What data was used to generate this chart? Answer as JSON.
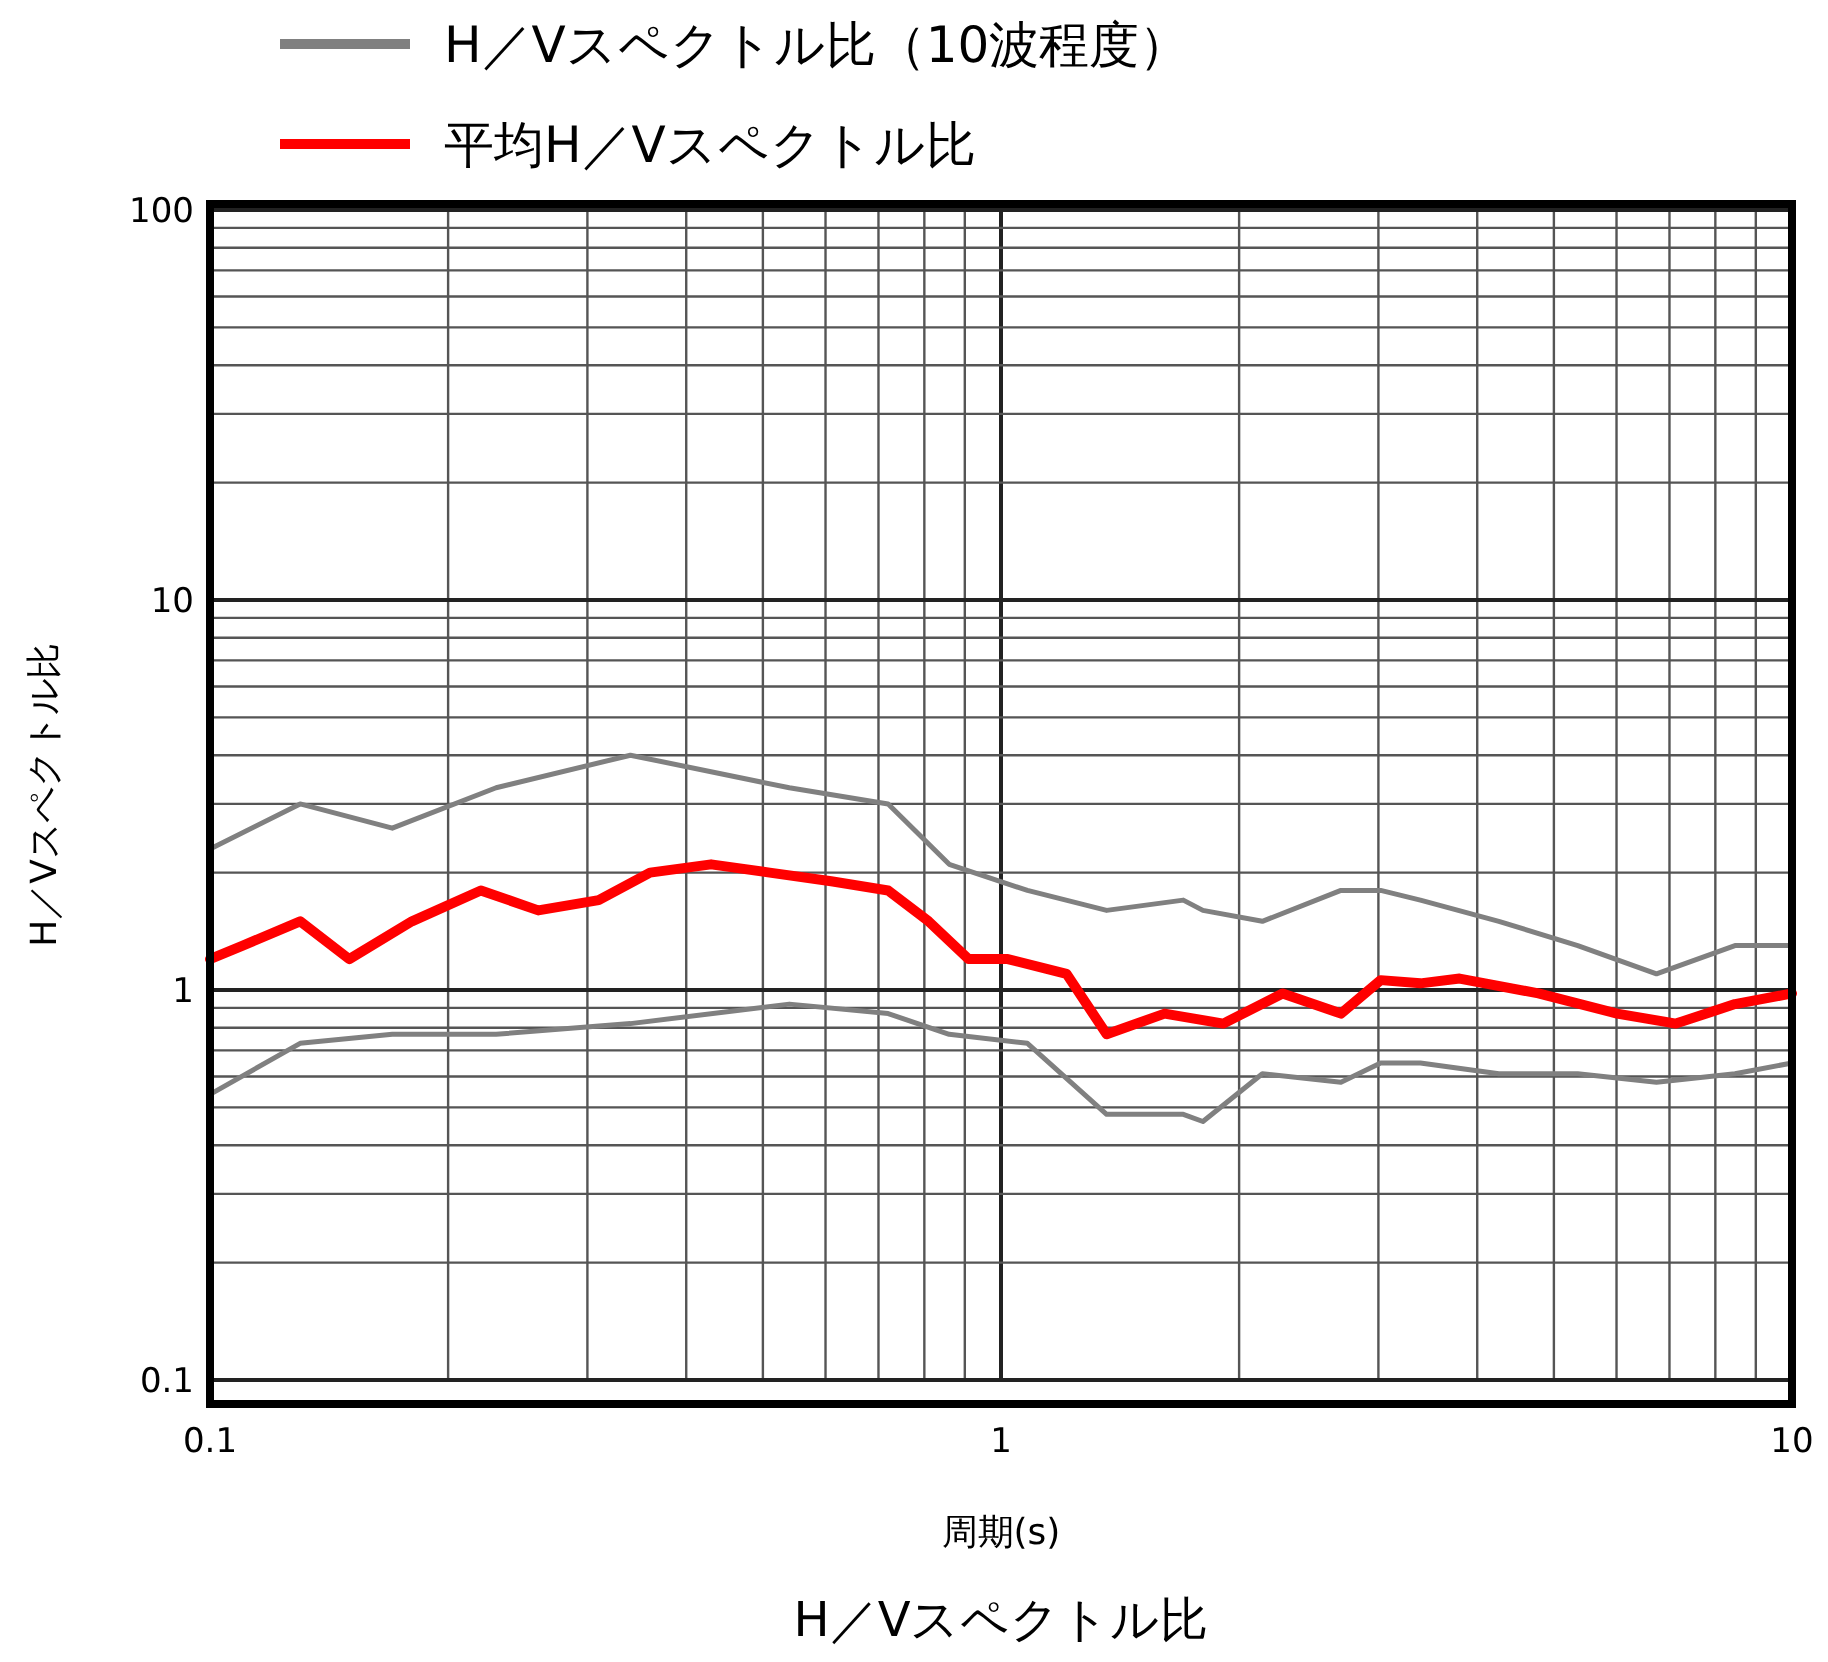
{
  "chart_data": {
    "type": "line",
    "title": "H／Vスペクトル比",
    "xlabel": "周期(s)",
    "ylabel": "H／Vスペクトル比",
    "log": "xy",
    "xlim": [
      0.1,
      10
    ],
    "ylim": [
      0.1,
      100
    ],
    "xticks": [
      0.1,
      1,
      10
    ],
    "yticks": [
      0.1,
      1,
      10,
      100
    ],
    "grid": true,
    "legend": "top",
    "series": [
      {
        "name": "H／Vスペクトル比（10波程度）",
        "color": "#808080",
        "x": [
          0.1,
          0.13,
          0.17,
          0.23,
          0.34,
          0.54,
          0.72,
          0.86,
          1.08,
          1.36,
          1.7,
          1.8,
          2.14,
          2.69,
          3.02,
          3.39,
          4.26,
          5.36,
          6.74,
          8.47,
          10
        ],
        "values": [
          2.3,
          3.0,
          2.6,
          3.3,
          4.0,
          3.3,
          3.0,
          2.1,
          1.8,
          1.6,
          1.7,
          1.6,
          1.5,
          1.8,
          1.8,
          1.7,
          1.5,
          1.3,
          1.1,
          1.3,
          1.3
        ]
      },
      {
        "color": "#808080",
        "x": [
          0.1,
          0.13,
          0.17,
          0.23,
          0.34,
          0.54,
          0.72,
          0.86,
          1.08,
          1.36,
          1.7,
          1.8,
          2.14,
          2.69,
          3.02,
          3.39,
          4.26,
          5.36,
          6.74,
          8.47,
          10
        ],
        "values": [
          0.54,
          0.73,
          0.77,
          0.77,
          0.82,
          0.92,
          0.87,
          0.77,
          0.73,
          0.48,
          0.48,
          0.46,
          0.61,
          0.58,
          0.65,
          0.65,
          0.61,
          0.61,
          0.58,
          0.61,
          0.65
        ]
      },
      {
        "name": "平均H／Vスペクトル比",
        "color": "#ff0000",
        "type": "line",
        "x": [
          0.1,
          0.11,
          0.13,
          0.15,
          0.18,
          0.22,
          0.26,
          0.31,
          0.36,
          0.43,
          0.51,
          0.61,
          0.72,
          0.81,
          0.91,
          1.02,
          1.21,
          1.36,
          1.61,
          1.91,
          2.27,
          2.69,
          3.02,
          3.39,
          3.8,
          4.78,
          6.01,
          7.13,
          8.47,
          10
        ],
        "values": [
          1.2,
          1.3,
          1.5,
          1.2,
          1.5,
          1.8,
          1.6,
          1.7,
          2.0,
          2.1,
          2.0,
          1.9,
          1.8,
          1.5,
          1.2,
          1.2,
          1.1,
          0.77,
          0.87,
          0.82,
          0.98,
          0.87,
          1.06,
          1.04,
          1.07,
          0.98,
          0.87,
          0.82,
          0.92,
          0.98
        ]
      }
    ]
  }
}
